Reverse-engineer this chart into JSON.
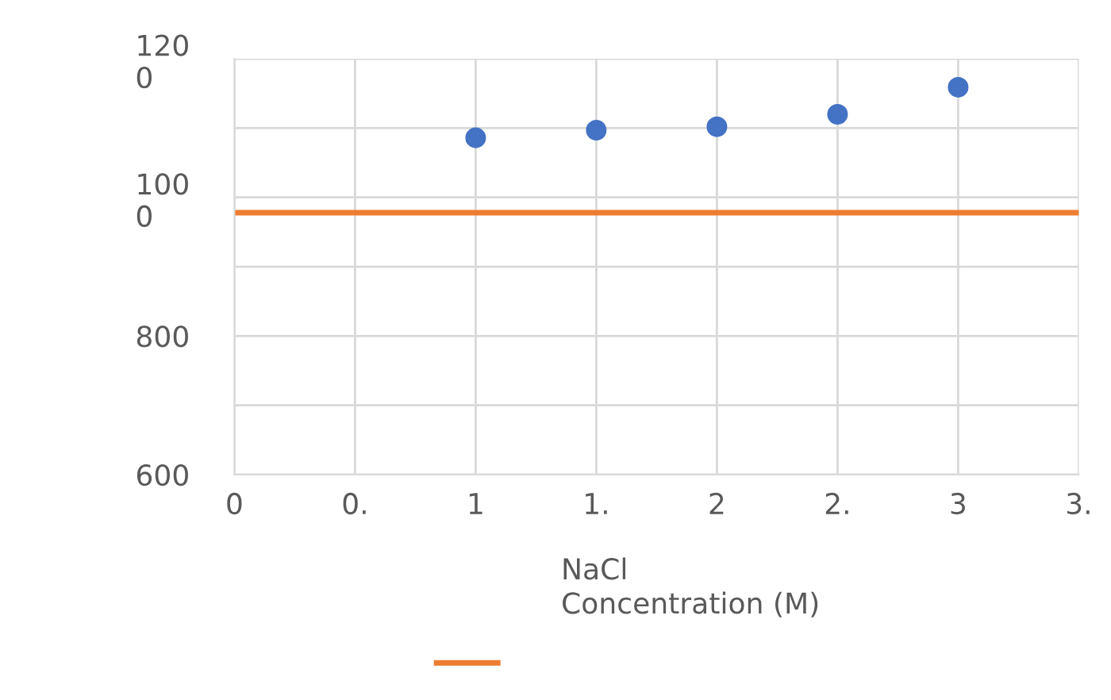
{
  "chart_data": {
    "type": "scatter",
    "xlabel": "NaCl Concentration (M)",
    "series": [
      {
        "color": "#4472c4",
        "x": [
          1,
          1.5,
          2,
          2.5,
          3
        ],
        "values": [
          1086,
          1097,
          1102,
          1120,
          1159
        ],
        "marker": "circle"
      },
      {
        "type": "line",
        "color": "#ed7d31",
        "x": [
          0,
          3.5
        ],
        "values": [
          978,
          978
        ],
        "marker": "none"
      }
    ],
    "xlim": [
      0,
      3.5
    ],
    "ylim": [
      600,
      1200
    ],
    "xticks": [
      0,
      {
        "value": 0.5,
        "label": "0."
      },
      1,
      {
        "value": 1.5,
        "label": "1."
      },
      2,
      {
        "value": 2.5,
        "label": "2."
      },
      3,
      {
        "value": 3.5,
        "label": "3."
      }
    ],
    "yticks": [
      600,
      {
        "value": 700,
        "label": null
      },
      800,
      {
        "value": 900,
        "label": null
      },
      1000,
      {
        "value": 1100,
        "label": null
      },
      1200
    ],
    "grid": true
  }
}
